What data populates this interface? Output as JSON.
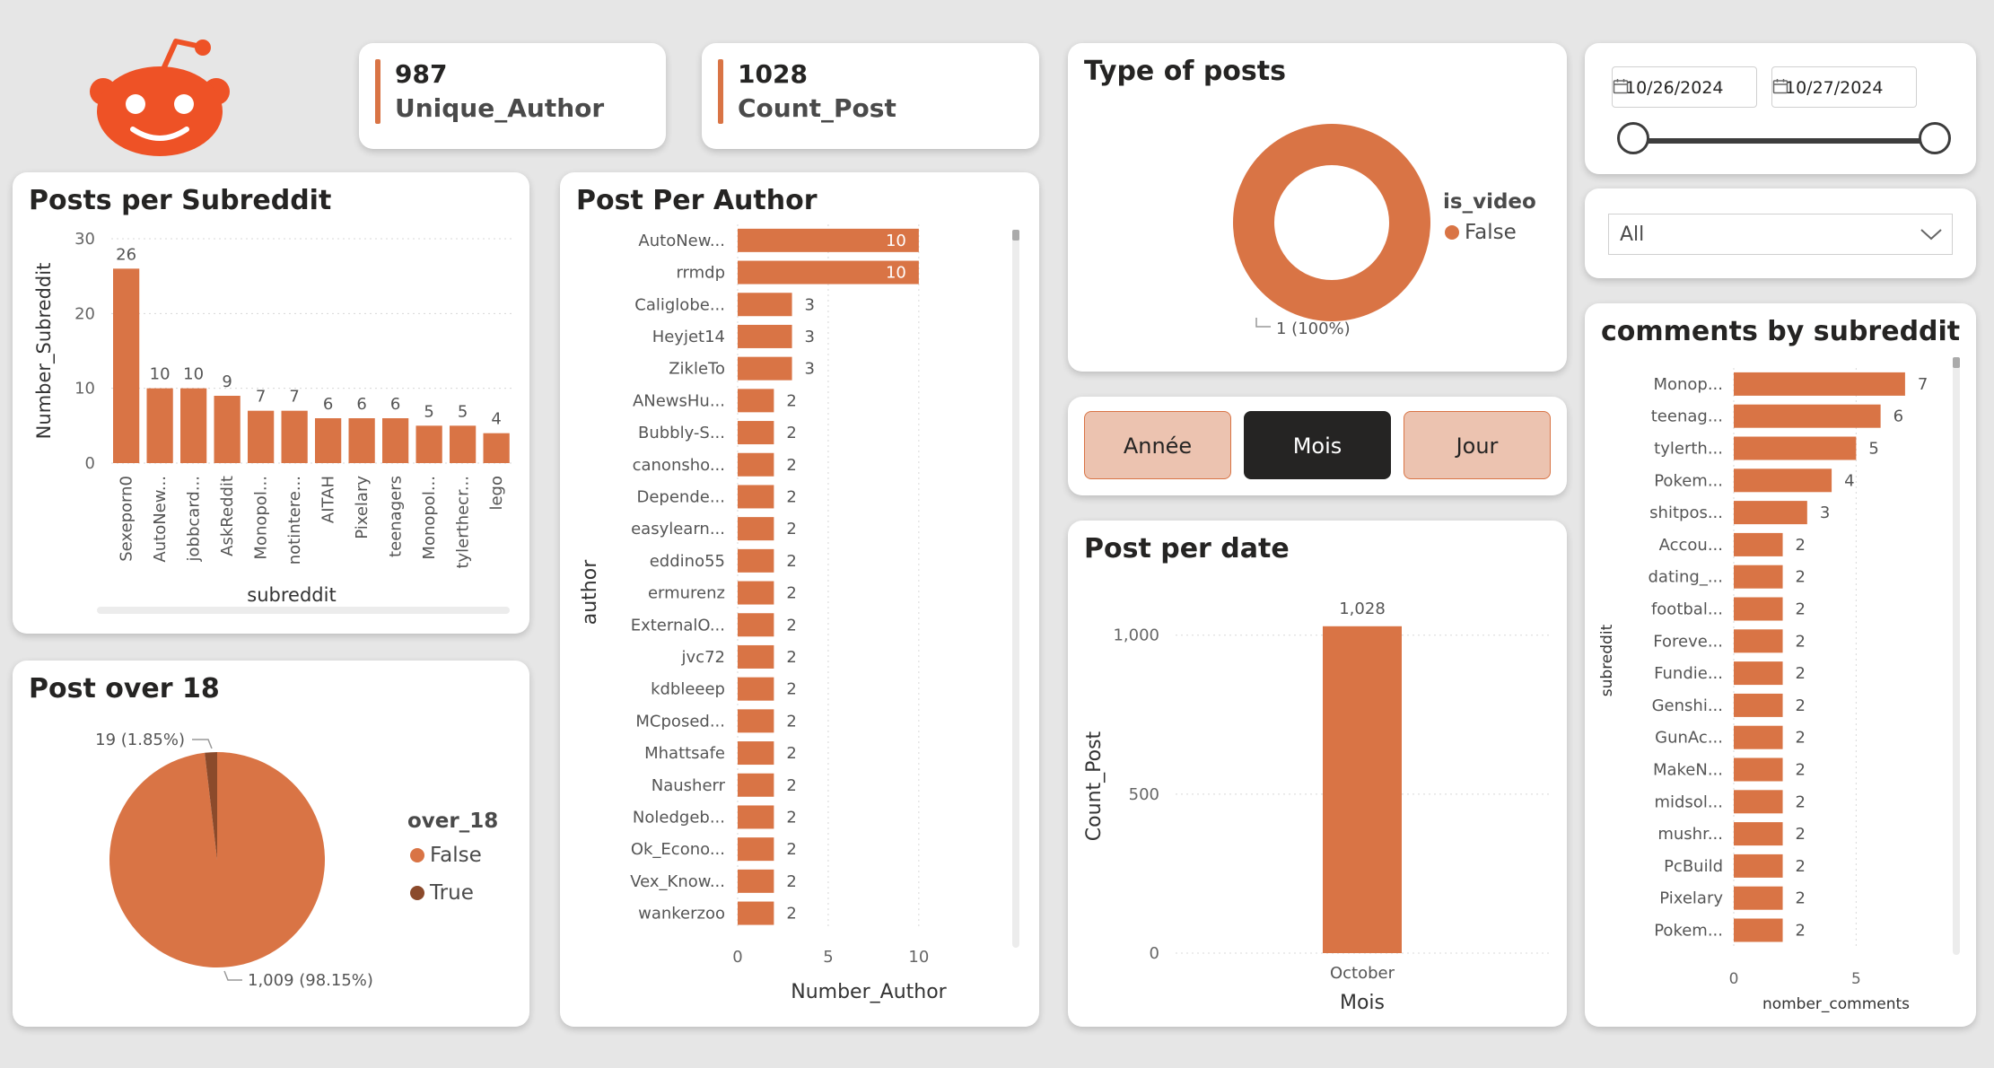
{
  "colors": {
    "bar": "#d97445",
    "dark": "#8b4a2b",
    "logo": "#ee5226",
    "grid": "#d8d8d8"
  },
  "logo": {
    "icon": "reddit-alien-icon"
  },
  "kpi": [
    {
      "value": "987",
      "label": "Unique_Author"
    },
    {
      "value": "1028",
      "label": "Count_Post"
    }
  ],
  "date_slicer": {
    "start": "10/26/2024",
    "end": "10/27/2024"
  },
  "dropdown": {
    "selected": "All"
  },
  "granularity": {
    "buttons": [
      "Année",
      "Mois",
      "Jour"
    ],
    "active": "Mois"
  },
  "chart_data": [
    {
      "id": "posts_per_subreddit",
      "type": "bar",
      "title": "Posts per Subreddit",
      "xlabel": "subreddit",
      "ylabel": "Number_Subreddit",
      "categories": [
        "Sexeporn0",
        "AutoNew...",
        "jobbcard...",
        "AskReddit",
        "Monopol...",
        "notintere...",
        "AITAH",
        "Pixelary",
        "teenagers",
        "Monopol...",
        "tylerthecr...",
        "lego"
      ],
      "values": [
        26,
        10,
        10,
        9,
        7,
        7,
        6,
        6,
        6,
        5,
        5,
        4
      ],
      "yticks": [
        "0",
        "10",
        "20",
        "30"
      ],
      "ylim": [
        0,
        30
      ]
    },
    {
      "id": "post_per_author",
      "type": "bar",
      "orientation": "horizontal",
      "title": "Post Per Author",
      "xlabel": "Number_Author",
      "ylabel": "author",
      "categories": [
        "AutoNew...",
        "rrmdp",
        "Caliglobe...",
        "Heyjet14",
        "ZikleTo",
        "ANewsHu...",
        "Bubbly-S...",
        "canonsho...",
        "Depende...",
        "easylearn...",
        "eddino55",
        "ermurenz",
        "ExternalO...",
        "jvc72",
        "kdbleeep",
        "MCposed...",
        "Mhattsafe",
        "Nausherr",
        "Noledgeb...",
        "Ok_Econo...",
        "Vex_Know...",
        "wankerzoo"
      ],
      "values": [
        10,
        10,
        3,
        3,
        3,
        2,
        2,
        2,
        2,
        2,
        2,
        2,
        2,
        2,
        2,
        2,
        2,
        2,
        2,
        2,
        2,
        2
      ],
      "xticks": [
        "0",
        "5",
        "10"
      ],
      "xlim": [
        0,
        10.8
      ]
    },
    {
      "id": "type_of_posts",
      "type": "pie",
      "style": "donut",
      "title": "Type of posts",
      "legend_title": "is_video",
      "labels": [
        "False"
      ],
      "values": [
        1
      ],
      "data_labels": [
        "1 (100%)"
      ]
    },
    {
      "id": "post_over_18",
      "type": "pie",
      "title": "Post over 18",
      "legend_title": "over_18",
      "labels": [
        "False",
        "True"
      ],
      "values": [
        1009,
        19
      ],
      "data_labels": [
        "1,009 (98.15%)",
        "19 (1.85%)"
      ]
    },
    {
      "id": "post_per_date",
      "type": "bar",
      "title": "Post per date",
      "xlabel": "Mois",
      "ylabel": "Count_Post",
      "categories": [
        "October"
      ],
      "values": [
        1028
      ],
      "data_labels": [
        "1,028"
      ],
      "yticks": [
        "0",
        "500",
        "1,000"
      ],
      "ylim": [
        0,
        1050
      ]
    },
    {
      "id": "comments_by_subreddit",
      "type": "bar",
      "orientation": "horizontal",
      "title": "comments by subreddit",
      "xlabel": "nomber_comments",
      "ylabel": "subreddit",
      "categories": [
        "Monop...",
        "teenag...",
        "tylerth...",
        "Pokem...",
        "shitpos...",
        "Accou...",
        "dating_...",
        "footbal...",
        "Foreve...",
        "Fundie...",
        "Genshi...",
        "GunAc...",
        "MakeN...",
        "midsol...",
        "mushr...",
        "PcBuild",
        "Pixelary",
        "Pokem..."
      ],
      "values": [
        7,
        6,
        5,
        4,
        3,
        2,
        2,
        2,
        2,
        2,
        2,
        2,
        2,
        2,
        2,
        2,
        2,
        2
      ],
      "xticks": [
        "0",
        "5"
      ],
      "xlim": [
        0,
        7.7
      ]
    }
  ]
}
